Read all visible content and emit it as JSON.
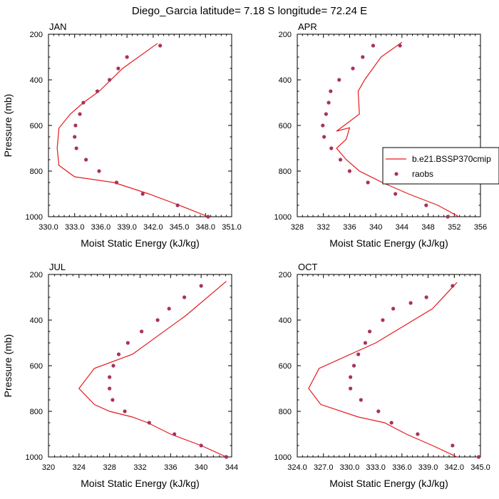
{
  "title": "Diego_Garcia  latitude= 7.18 S longitude= 72.24 E",
  "colors": {
    "model": "#e41a1c",
    "obs": "#a8325e"
  },
  "chart_data": [
    {
      "type": "line",
      "panel_label": "JAN",
      "xlabel": "Moist Static Energy (kJ/kg)",
      "ylabel": "Pressure (mb)",
      "xlim": [
        330,
        351
      ],
      "xticks": [
        330.0,
        333.0,
        336.0,
        339.0,
        342.0,
        345.0,
        348.0,
        351.0
      ],
      "xtick_labels": [
        "330.0",
        "333.0",
        "336.0",
        "339.0",
        "342.0",
        "345.0",
        "348.0",
        "351.0"
      ],
      "ylim": [
        1000,
        200
      ],
      "yticks": [
        200,
        400,
        600,
        800,
        1000
      ],
      "series": [
        {
          "name": "b.e21.BSSP370cmip",
          "style": "line",
          "x": [
            348.3,
            345.0,
            341.5,
            337.5,
            333.0,
            331.2,
            331.0,
            331.2,
            332.5,
            334.0,
            335.8,
            338.5,
            342.5
          ],
          "y": [
            1000,
            950,
            900,
            850,
            825,
            775,
            700,
            612,
            550,
            500,
            450,
            350,
            240
          ]
        },
        {
          "name": "raobs",
          "style": "markers",
          "x": [
            348.3,
            344.8,
            340.8,
            337.8,
            335.8,
            334.3,
            333.2,
            333.0,
            333.1,
            333.6,
            334.0,
            335.6,
            337.0,
            338.0,
            339.0,
            342.8
          ],
          "y": [
            1000,
            950,
            900,
            850,
            800,
            750,
            700,
            650,
            600,
            550,
            500,
            450,
            400,
            350,
            300,
            250
          ]
        }
      ]
    },
    {
      "type": "line",
      "panel_label": "APR",
      "xlabel": "Moist Static Energy (kJ/kg)",
      "ylabel": "",
      "xlim": [
        328,
        356
      ],
      "xticks": [
        328,
        332,
        336,
        340,
        344,
        348,
        352,
        356
      ],
      "xtick_labels": [
        "328",
        "332",
        "336",
        "340",
        "344",
        "348",
        "352",
        "356"
      ],
      "ylim": [
        1000,
        200
      ],
      "yticks": [
        200,
        400,
        600,
        800,
        1000
      ],
      "series": [
        {
          "name": "b.e21.BSSP370cmip",
          "style": "line",
          "x": [
            352.7,
            349.5,
            345.0,
            341.0,
            337.5,
            335.5,
            334.0,
            335.5,
            336.0,
            334.0,
            337.5,
            337.3,
            338.3,
            340.8,
            344.0
          ],
          "y": [
            1000,
            950,
            900,
            850,
            800,
            750,
            700,
            660,
            610,
            625,
            550,
            450,
            400,
            300,
            235
          ]
        },
        {
          "name": "raobs",
          "style": "markers",
          "x": [
            351.0,
            347.7,
            343.0,
            338.8,
            336.0,
            334.6,
            333.2,
            332.1,
            331.9,
            332.4,
            332.8,
            333.1,
            334.4,
            336.5,
            338.0,
            339.6,
            343.7
          ],
          "y": [
            1000,
            950,
            900,
            850,
            800,
            750,
            700,
            650,
            600,
            550,
            500,
            450,
            400,
            350,
            300,
            250,
            250
          ]
        }
      ]
    },
    {
      "type": "line",
      "panel_label": "JUL",
      "xlabel": "Moist Static Energy (kJ/kg)",
      "ylabel": "Pressure (mb)",
      "xlim": [
        320,
        344
      ],
      "xticks": [
        320,
        324,
        328,
        332,
        336,
        340,
        344
      ],
      "xtick_labels": [
        "320",
        "324",
        "328",
        "332",
        "336",
        "340",
        "344"
      ],
      "ylim": [
        1000,
        200
      ],
      "yticks": [
        200,
        400,
        600,
        800,
        1000
      ],
      "series": [
        {
          "name": "b.e21.BSSP370cmip",
          "style": "line",
          "x": [
            343.3,
            340.0,
            336.0,
            333.0,
            331.0,
            328.0,
            326.0,
            324.0,
            326.0,
            331.0,
            338.0,
            343.3
          ],
          "y": [
            1000,
            950,
            900,
            850,
            825,
            800,
            770,
            700,
            612,
            550,
            380,
            230
          ]
        },
        {
          "name": "raobs",
          "style": "markers",
          "x": [
            343.3,
            340.0,
            336.5,
            333.2,
            330.0,
            328.4,
            328.0,
            328.0,
            328.5,
            329.2,
            330.4,
            332.2,
            334.3,
            335.8,
            337.8,
            340.0
          ],
          "y": [
            1000,
            950,
            900,
            850,
            800,
            750,
            700,
            650,
            600,
            550,
            500,
            450,
            400,
            350,
            300,
            250
          ]
        }
      ]
    },
    {
      "type": "line",
      "panel_label": "OCT",
      "xlabel": "Moist Static Energy (kJ/kg)",
      "ylabel": "",
      "xlim": [
        324,
        345
      ],
      "xticks": [
        324.0,
        327.0,
        330.0,
        333.0,
        336.0,
        339.0,
        342.0,
        345.0
      ],
      "xtick_labels": [
        "324.0",
        "327.0",
        "330.0",
        "333.0",
        "336.0",
        "339.0",
        "342.0",
        "345.0"
      ],
      "ylim": [
        1000,
        200
      ],
      "yticks": [
        200,
        400,
        600,
        800,
        1000
      ],
      "series": [
        {
          "name": "b.e21.BSSP370cmip",
          "style": "line",
          "x": [
            342.3,
            339.5,
            336.5,
            334.0,
            331.0,
            326.7,
            325.3,
            326.5,
            333.0,
            339.5,
            342.3
          ],
          "y": [
            1000,
            950,
            900,
            850,
            825,
            770,
            700,
            612,
            500,
            350,
            235
          ]
        },
        {
          "name": "raobs",
          "style": "markers",
          "x": [
            344.8,
            341.8,
            337.8,
            334.8,
            333.3,
            331.3,
            330.1,
            330.1,
            330.5,
            331.0,
            331.8,
            332.3,
            333.8,
            335.0,
            337.0,
            338.8,
            341.8
          ],
          "y": [
            1000,
            950,
            900,
            850,
            800,
            750,
            700,
            650,
            600,
            550,
            500,
            450,
            400,
            350,
            325,
            300,
            250
          ]
        }
      ]
    }
  ],
  "legend": {
    "placement": "right-center of APR panel",
    "items": [
      {
        "label": "b.e21.BSSP370cmip",
        "style": "line"
      },
      {
        "label": "raobs",
        "style": "marker"
      }
    ]
  }
}
